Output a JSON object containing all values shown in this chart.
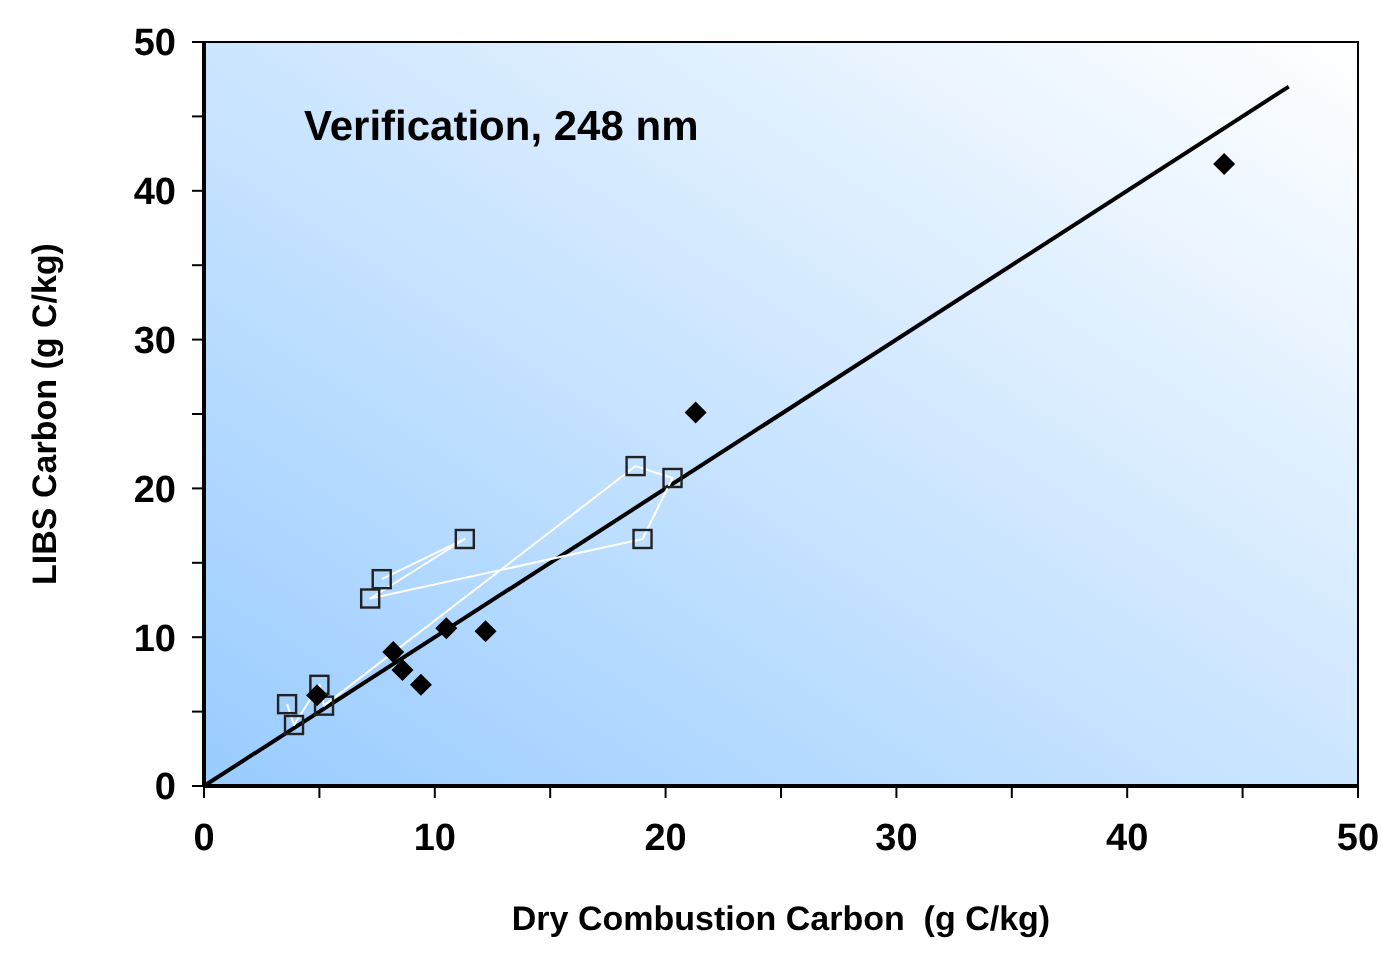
{
  "chart_data": {
    "type": "scatter",
    "xlabel": "Dry Combustion Carbon  (g C/kg)",
    "ylabel": "LIBS Carbon (g C/kg)",
    "annotations": [
      "Verification, 248 nm"
    ],
    "xlim": [
      0,
      50
    ],
    "ylim": [
      0,
      50
    ],
    "xticks": [
      0,
      {
        "value": 5,
        "label": null
      },
      10,
      {
        "value": 15,
        "label": null
      },
      20,
      {
        "value": 25,
        "label": null
      },
      30,
      {
        "value": 35,
        "label": null
      },
      40,
      {
        "value": 45,
        "label": null
      },
      50
    ],
    "yticks": [
      0,
      {
        "value": 5,
        "label": null
      },
      10,
      {
        "value": 15,
        "label": null
      },
      20,
      {
        "value": 25,
        "label": null
      },
      30,
      {
        "value": 35,
        "label": null
      },
      40,
      {
        "value": 45,
        "label": null
      },
      50
    ],
    "series": [
      {
        "type": "line",
        "color": "#000000",
        "marker": "none",
        "x": [
          0,
          47
        ],
        "values": [
          0,
          47
        ]
      },
      {
        "type": "line",
        "color": "#ffffff",
        "marker": "square",
        "x": [
          3.6,
          3.9,
          5.0,
          5.2,
          18.7,
          20.3,
          19.0,
          7.2,
          11.3,
          7.7
        ],
        "values": [
          5.5,
          4.1,
          6.8,
          5.4,
          21.5,
          20.7,
          16.6,
          12.6,
          16.6,
          13.9
        ]
      },
      {
        "type": "scatter",
        "color": "#000000",
        "marker": "diamond",
        "x": [
          44.2,
          21.3,
          10.5,
          12.2,
          8.2,
          8.6,
          9.4,
          4.9
        ],
        "values": [
          41.8,
          25.1,
          10.6,
          10.4,
          9.0,
          7.8,
          6.8,
          6.1
        ]
      }
    ]
  }
}
